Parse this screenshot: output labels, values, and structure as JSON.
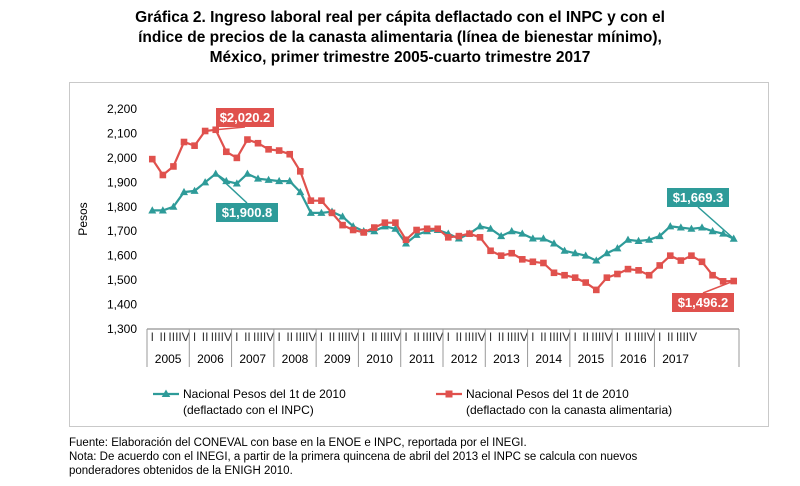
{
  "title_lines": [
    "Gráfica 2. Ingreso laboral real per cápita deflactado con el INPC y con el",
    "índice de precios de la canasta alimentaria (línea de bienestar mínimo),",
    "México, primer trimestre 2005-cuarto trimestre 2017"
  ],
  "footnote_lines": [
    "Fuente: Elaboración del CONEVAL con base en la ENOE e INPC, reportada por el INEGI.",
    "Nota: De acuerdo con el INEGI, a partir de la primera quincena de abril del 2013 el INPC se calcula con nuevos",
    "ponderadores obtenidos de la ENIGH 2010."
  ],
  "chart_data": {
    "type": "line",
    "ylabel": "Pesos",
    "xlabel": "",
    "ylim": [
      1300,
      2200
    ],
    "y_ticks": [
      "1,300",
      "1,400",
      "1,500",
      "1,600",
      "1,700",
      "1,800",
      "1,900",
      "2,000",
      "2,100",
      "2,200"
    ],
    "quarter_labels": [
      "I",
      "II",
      "III",
      "IV"
    ],
    "years": [
      "2005",
      "2006",
      "2007",
      "2008",
      "2009",
      "2010",
      "2011",
      "2012",
      "2013",
      "2014",
      "2015",
      "2016",
      "2017"
    ],
    "legend_position": "bottom",
    "series": [
      {
        "name": "Nacional Pesos del 1t de 2010 (deflactado con el INPC)",
        "legend_line1": "Nacional Pesos del 1t de 2010",
        "legend_line2": "(deflactado con el INPC)",
        "color": "#2e9b99",
        "marker": "triangle",
        "values": [
          1785,
          1785,
          1800,
          1860,
          1865,
          1900,
          1935,
          1905,
          1895,
          1935,
          1915,
          1910,
          1905,
          1905,
          1860,
          1775,
          1775,
          1780,
          1760,
          1720,
          1700,
          1700,
          1720,
          1710,
          1650,
          1685,
          1700,
          1705,
          1690,
          1670,
          1690,
          1720,
          1710,
          1680,
          1700,
          1690,
          1670,
          1670,
          1650,
          1620,
          1610,
          1600,
          1580,
          1610,
          1630,
          1665,
          1660,
          1665,
          1680,
          1720,
          1715,
          1710,
          1715,
          1700,
          1690,
          1669.3
        ]
      },
      {
        "name": "Nacional Pesos del 1t de 2010 (deflactado con la canasta alimentaria)",
        "legend_line1": "Nacional Pesos del 1t de 2010",
        "legend_line2": "(deflactado con la canasta alimentaria)",
        "color": "#e0514d",
        "marker": "square",
        "values": [
          1995,
          1930,
          1965,
          2065,
          2050,
          2110,
          2115,
          2025,
          2000,
          2075,
          2060,
          2035,
          2030,
          2015,
          1945,
          1825,
          1825,
          1775,
          1725,
          1705,
          1695,
          1715,
          1735,
          1735,
          1665,
          1705,
          1710,
          1710,
          1675,
          1680,
          1690,
          1675,
          1620,
          1600,
          1610,
          1585,
          1575,
          1570,
          1530,
          1520,
          1510,
          1490,
          1460,
          1510,
          1525,
          1545,
          1540,
          1520,
          1560,
          1600,
          1580,
          1600,
          1575,
          1520,
          1495,
          1496.2
        ]
      }
    ],
    "annotations": [
      {
        "text": "$2,020.2",
        "color": "#e0514d"
      },
      {
        "text": "$1,900.8",
        "color": "#2e9b99"
      },
      {
        "text": "$1,669.3",
        "color": "#2e9b99"
      },
      {
        "text": "$1,496.2",
        "color": "#e0514d"
      }
    ]
  }
}
